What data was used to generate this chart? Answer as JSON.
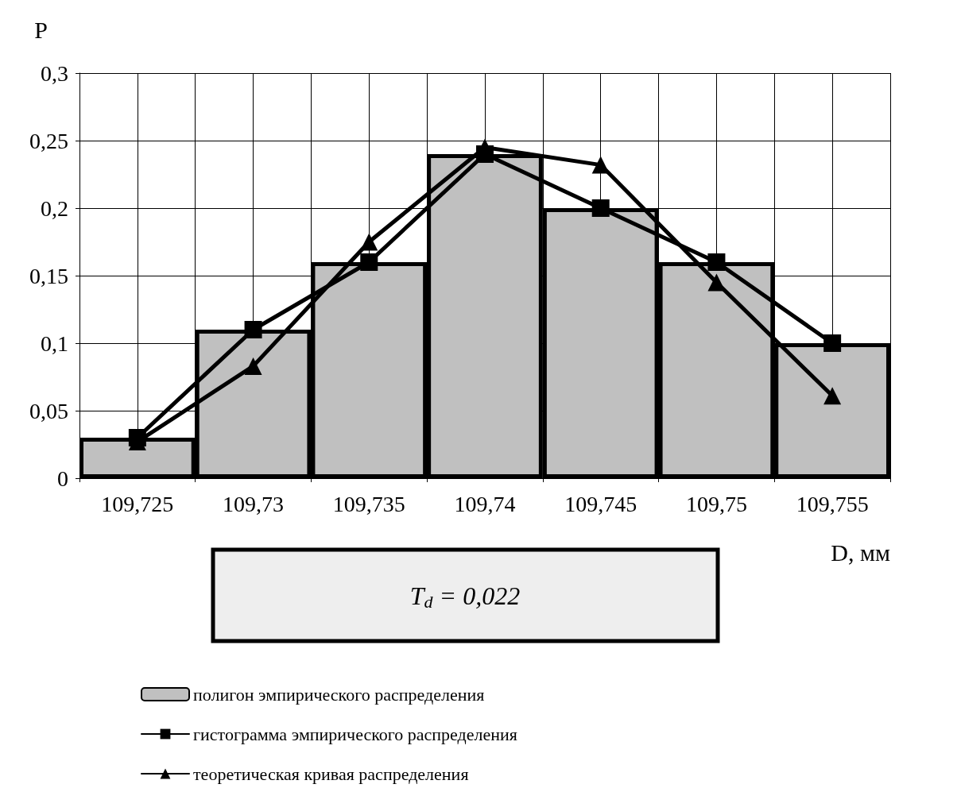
{
  "chart_data": {
    "type": "bar",
    "xlabel": "D, мм",
    "ylabel": "P",
    "categories": [
      "109,725",
      "109,73",
      "109,735",
      "109,74",
      "109,745",
      "109,75",
      "109,755"
    ],
    "series": [
      {
        "name": "полигон эмпирического распределения",
        "color": "#c0c0c0",
        "values": [
          0.03,
          0.11,
          0.16,
          0.24,
          0.2,
          0.16,
          0.1
        ]
      },
      {
        "name": "гистограмма эмпирического распределения",
        "type": "line",
        "marker": "square",
        "color": "#000000",
        "values": [
          0.03,
          0.11,
          0.16,
          0.24,
          0.2,
          0.16,
          0.1
        ]
      },
      {
        "name": "теоретическая кривая распределения",
        "type": "line",
        "marker": "triangle",
        "color": "#000000",
        "values": [
          0.027,
          0.083,
          0.175,
          0.245,
          0.232,
          0.145,
          0.061
        ]
      }
    ],
    "ylim": [
      0,
      0.3
    ],
    "yticks": [
      0,
      {
        "value": 0.05,
        "label": "0,05"
      },
      {
        "value": 0.1,
        "label": "0,1"
      },
      {
        "value": 0.15,
        "label": "0,15"
      },
      {
        "value": 0.2,
        "label": "0,2"
      },
      {
        "value": 0.25,
        "label": "0,25"
      },
      {
        "value": 0.3,
        "label": "0,3"
      }
    ],
    "grid": true,
    "legend": "bottom left",
    "annotations": [
      "T$_{d}$ = 0,022"
    ]
  }
}
